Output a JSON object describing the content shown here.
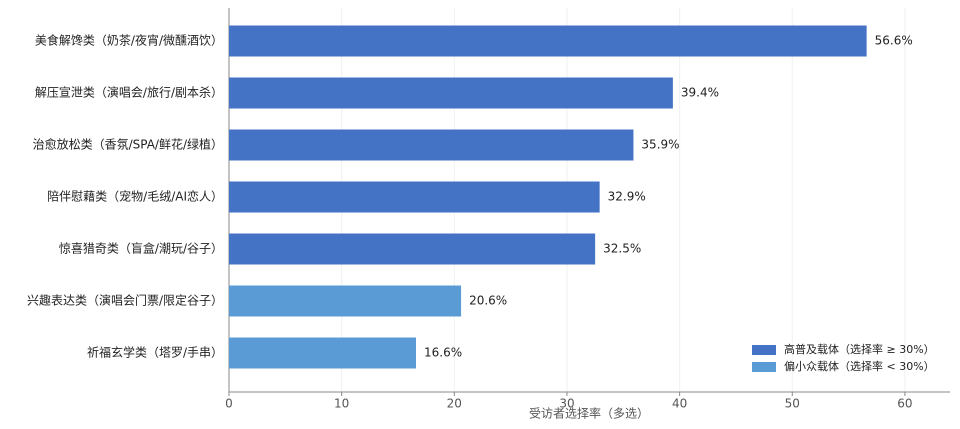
{
  "chart_data": {
    "type": "barh",
    "x_label": "受访者选择率（多选）",
    "categories": [
      "美食解馋类（奶茶/夜宵/微醺酒饮）",
      "解压宣泄类（演唱会/旅行/剧本杀）",
      "治愈放松类（香氛/SPA/鲜花/绿植）",
      "陪伴慰藉类（宠物/毛绒/AI恋人）",
      "惊喜猎奇类（盲盒/潮玩/谷子）",
      "兴趣表达类（演唱会门票/限定谷子）",
      "祈福玄学类（塔罗/手串）"
    ],
    "series": [
      {
        "name": "高普及载体（选择率 ≥ 30%）",
        "color": "#4472c4",
        "values": [
          56.6,
          39.4,
          35.9,
          32.9,
          32.5,
          null,
          null
        ],
        "value_labels": [
          "56.6%",
          "39.4%",
          "35.9%",
          "32.9%",
          "32.5%",
          null,
          null
        ]
      },
      {
        "name": "偏小众载体（选择率 < 30%）",
        "color": "#5b9bd5",
        "values": [
          null,
          null,
          null,
          null,
          null,
          20.6,
          16.6
        ],
        "value_labels": [
          null,
          null,
          null,
          null,
          null,
          "20.6%",
          "16.6%"
        ]
      }
    ],
    "xlim": [
      0,
      64
    ],
    "xticks": [
      0,
      10,
      20,
      30,
      40,
      50,
      60
    ],
    "grid": true,
    "legend": "lower right"
  }
}
